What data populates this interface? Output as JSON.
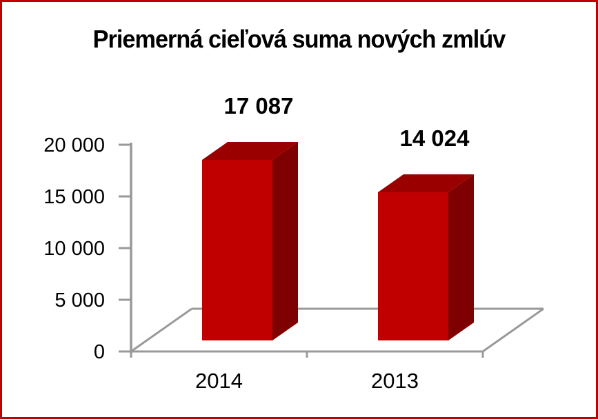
{
  "chart_data": {
    "type": "bar",
    "projection": "3d",
    "title": "Priemerná cieľová suma nových zmlúv",
    "categories": [
      "2014",
      "2013"
    ],
    "values": [
      17087,
      14024
    ],
    "data_labels": [
      "17 087",
      "14 024"
    ],
    "xlabel": "",
    "ylabel": "",
    "ylim": [
      0,
      20000
    ],
    "y_ticks": [
      0,
      5000,
      10000,
      15000,
      20000
    ],
    "y_tick_labels": [
      "0",
      "5 000",
      "10 000",
      "15 000",
      "20 000"
    ],
    "grid": false,
    "legend": "none",
    "colors": {
      "bar_front": "#c00000",
      "bar_top": "#9a0000",
      "bar_side": "#7e0000",
      "axis": "#999999",
      "frame_border": "#c00000",
      "text": "#000000",
      "background": "#ffffff"
    }
  }
}
